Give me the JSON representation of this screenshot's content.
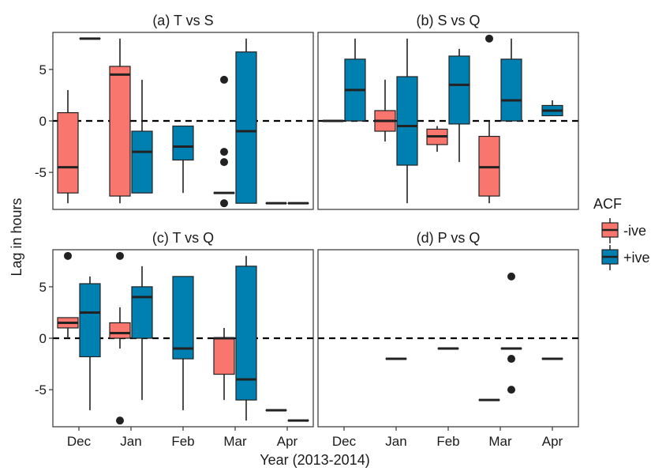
{
  "figure": {
    "ylabel": "Lag in hours",
    "xlabel": "Year (2013-2014)",
    "legend_title": "ACF",
    "legend_position": "right",
    "months": [
      "Dec",
      "Jan",
      "Feb",
      "Mar",
      "Apr"
    ]
  },
  "colors": {
    "negative": "#F8766D",
    "positive": "#0080B0",
    "outline": "#222222"
  },
  "chart_data": [
    {
      "type": "box",
      "title": "(a)  T vs S",
      "ylim": [
        -8.6,
        8.6
      ],
      "yticks": [
        -5,
        0,
        5
      ],
      "reference_line": 0,
      "groups": [
        {
          "month": "Dec",
          "acf": "-ive",
          "min": -8,
          "q1": -7,
          "median": -4.5,
          "q3": 0.8,
          "max": 3,
          "outliers": []
        },
        {
          "month": "Dec",
          "acf": "+ive",
          "min": 8,
          "q1": 8,
          "median": 8,
          "q3": 8,
          "max": 8,
          "outliers": []
        },
        {
          "month": "Jan",
          "acf": "-ive",
          "min": -8,
          "q1": -7.3,
          "median": 4.5,
          "q3": 5.3,
          "max": 8,
          "outliers": []
        },
        {
          "month": "Jan",
          "acf": "+ive",
          "min": -7,
          "q1": -7,
          "median": -3,
          "q3": -1,
          "max": 4,
          "outliers": []
        },
        {
          "month": "Feb",
          "acf": "+ive",
          "min": -7,
          "q1": -3.8,
          "median": -2.5,
          "q3": -0.5,
          "max": -0.5,
          "outliers": []
        },
        {
          "month": "Mar",
          "acf": "-ive",
          "min": -7,
          "q1": -7,
          "median": -7,
          "q3": -7,
          "max": -7,
          "outliers": [
            4,
            -3,
            -4,
            -8
          ]
        },
        {
          "month": "Mar",
          "acf": "+ive",
          "min": -8,
          "q1": -8,
          "median": -1,
          "q3": 6.7,
          "max": 8,
          "outliers": []
        },
        {
          "month": "Apr",
          "acf": "-ive",
          "min": -8,
          "q1": -8,
          "median": -8,
          "q3": -8,
          "max": -8,
          "outliers": []
        },
        {
          "month": "Apr",
          "acf": "+ive",
          "min": -8,
          "q1": -8,
          "median": -8,
          "q3": -8,
          "max": -8,
          "outliers": []
        }
      ]
    },
    {
      "type": "box",
      "title": "(b)  S vs Q",
      "ylim": [
        -8.6,
        8.6
      ],
      "yticks": [
        -5,
        0,
        5
      ],
      "reference_line": 0,
      "groups": [
        {
          "month": "Dec",
          "acf": "-ive",
          "min": 0,
          "q1": 0,
          "median": 0,
          "q3": 0,
          "max": 0,
          "outliers": []
        },
        {
          "month": "Dec",
          "acf": "+ive",
          "min": 0,
          "q1": 0,
          "median": 3,
          "q3": 6,
          "max": 8,
          "outliers": []
        },
        {
          "month": "Jan",
          "acf": "-ive",
          "min": -2,
          "q1": -1,
          "median": 0,
          "q3": 1,
          "max": 4,
          "outliers": []
        },
        {
          "month": "Jan",
          "acf": "+ive",
          "min": -8,
          "q1": -4.3,
          "median": -0.5,
          "q3": 4.3,
          "max": 8,
          "outliers": []
        },
        {
          "month": "Feb",
          "acf": "-ive",
          "min": -3,
          "q1": -2.3,
          "median": -1.5,
          "q3": -0.8,
          "max": -0.5,
          "outliers": []
        },
        {
          "month": "Feb",
          "acf": "+ive",
          "min": -4,
          "q1": -0.3,
          "median": 3.5,
          "q3": 6.3,
          "max": 7,
          "outliers": []
        },
        {
          "month": "Mar",
          "acf": "-ive",
          "min": -8,
          "q1": -7.3,
          "median": -4.5,
          "q3": -1.5,
          "max": 0,
          "outliers": [
            8
          ]
        },
        {
          "month": "Mar",
          "acf": "+ive",
          "min": 0,
          "q1": 0,
          "median": 2,
          "q3": 6,
          "max": 8,
          "outliers": []
        },
        {
          "month": "Apr",
          "acf": "+ive",
          "min": 0.5,
          "q1": 0.5,
          "median": 1,
          "q3": 1.5,
          "max": 2,
          "outliers": []
        }
      ]
    },
    {
      "type": "box",
      "title": "(c)  T vs Q",
      "ylim": [
        -8.6,
        8.6
      ],
      "yticks": [
        -5,
        0,
        5
      ],
      "reference_line": 0,
      "groups": [
        {
          "month": "Dec",
          "acf": "-ive",
          "min": 0,
          "q1": 1,
          "median": 1.5,
          "q3": 2,
          "max": 2,
          "outliers": [
            8
          ]
        },
        {
          "month": "Dec",
          "acf": "+ive",
          "min": -7,
          "q1": -1.8,
          "median": 2.5,
          "q3": 5.3,
          "max": 6,
          "outliers": []
        },
        {
          "month": "Jan",
          "acf": "-ive",
          "min": -1,
          "q1": 0,
          "median": 0.5,
          "q3": 1.5,
          "max": 3,
          "outliers": [
            8,
            -8
          ]
        },
        {
          "month": "Jan",
          "acf": "+ive",
          "min": -6,
          "q1": 0,
          "median": 4,
          "q3": 5,
          "max": 7,
          "outliers": []
        },
        {
          "month": "Feb",
          "acf": "+ive",
          "min": -7,
          "q1": -2,
          "median": -1,
          "q3": 6,
          "max": 6,
          "outliers": []
        },
        {
          "month": "Mar",
          "acf": "-ive",
          "min": -6,
          "q1": -3.5,
          "median": 0,
          "q3": 0,
          "max": 1,
          "outliers": []
        },
        {
          "month": "Mar",
          "acf": "+ive",
          "min": -8,
          "q1": -6,
          "median": -4,
          "q3": 7,
          "max": 8,
          "outliers": []
        },
        {
          "month": "Apr",
          "acf": "-ive",
          "min": -7,
          "q1": -7,
          "median": -7,
          "q3": -7,
          "max": -7,
          "outliers": []
        },
        {
          "month": "Apr",
          "acf": "+ive",
          "min": -8,
          "q1": -8,
          "median": -8,
          "q3": -8,
          "max": -8,
          "outliers": []
        }
      ]
    },
    {
      "type": "box",
      "title": "(d)  P vs Q",
      "ylim": [
        -8.6,
        8.6
      ],
      "yticks": [
        -5,
        0,
        5
      ],
      "reference_line": 0,
      "groups": [
        {
          "month": "Jan",
          "acf": "+ive",
          "min": -2,
          "q1": -2,
          "median": -2,
          "q3": -2,
          "max": -2,
          "outliers": []
        },
        {
          "month": "Feb",
          "acf": "+ive",
          "min": -1,
          "q1": -1,
          "median": -1,
          "q3": -1,
          "max": -1,
          "outliers": []
        },
        {
          "month": "Mar",
          "acf": "-ive",
          "min": -6,
          "q1": -6,
          "median": -6,
          "q3": -6,
          "max": -6,
          "outliers": []
        },
        {
          "month": "Mar",
          "acf": "+ive",
          "min": -1,
          "q1": -1,
          "median": -1,
          "q3": -1,
          "max": -1,
          "outliers": [
            6,
            -2,
            -5
          ]
        },
        {
          "month": "Apr",
          "acf": "+ive",
          "min": -2,
          "q1": -2,
          "median": -2,
          "q3": -2,
          "max": -2,
          "outliers": []
        }
      ]
    }
  ],
  "legend": {
    "items": [
      {
        "label": "-ive",
        "color_key": "negative"
      },
      {
        "label": "+ive",
        "color_key": "positive"
      }
    ]
  }
}
